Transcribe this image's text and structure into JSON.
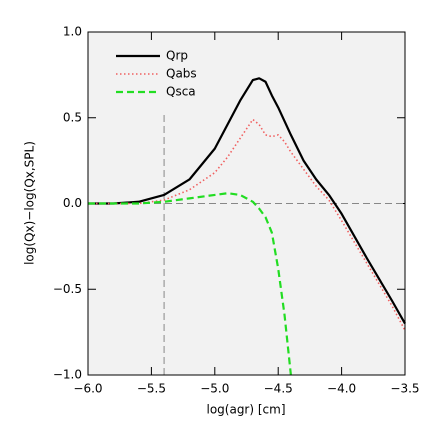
{
  "chart_data": {
    "type": "line",
    "xlabel": "log(agr) [cm]",
    "ylabel": "log(Qx)−log(Qx,SPL)",
    "x": [
      -6.0,
      -5.8,
      -5.6,
      -5.4,
      -5.2,
      -5.0,
      -4.9,
      -4.8,
      -4.7,
      -4.65,
      -4.6,
      -4.55,
      -4.5,
      -4.45,
      -4.4,
      -4.3,
      -4.2,
      -4.1,
      -4.0,
      -3.8,
      -3.6,
      -3.5
    ],
    "series": [
      {
        "name": "Qrp",
        "color": "#000000",
        "dash": "none",
        "width": 2.2,
        "values": [
          0,
          0,
          0.01,
          0.05,
          0.14,
          0.32,
          0.46,
          0.6,
          0.72,
          0.73,
          0.71,
          0.63,
          0.56,
          0.48,
          0.4,
          0.25,
          0.14,
          0.05,
          -0.06,
          -0.32,
          -0.57,
          -0.7
        ]
      },
      {
        "name": "Qabs",
        "color": "#f06060",
        "dash": "1.5 2.5",
        "width": 1.6,
        "values": [
          0,
          0,
          0,
          0.02,
          0.08,
          0.18,
          0.27,
          0.38,
          0.49,
          0.46,
          0.4,
          0.39,
          0.4,
          0.36,
          0.3,
          0.2,
          0.1,
          0.02,
          -0.1,
          -0.35,
          -0.6,
          -0.74
        ]
      },
      {
        "name": "Qsca",
        "color": "#22dd22",
        "dash": "7 4",
        "width": 2.2,
        "values": [
          0,
          0,
          0,
          0.01,
          0.03,
          0.05,
          0.06,
          0.05,
          0.01,
          -0.03,
          -0.08,
          -0.17,
          -0.38,
          -0.65,
          -1.0,
          null,
          null,
          null,
          null,
          null,
          null,
          null
        ]
      }
    ],
    "hlines": [
      0
    ],
    "vlines": [
      -5.4
    ],
    "xlim": [
      -6.0,
      -3.5
    ],
    "xticks": [
      {
        "value": -6.0,
        "label": "−6.0"
      },
      {
        "value": -5.5,
        "label": "−5.5"
      },
      {
        "value": -5.0,
        "label": "−5.0"
      },
      {
        "value": -4.5,
        "label": "−4.5"
      },
      {
        "value": -4.0,
        "label": "−4.0"
      },
      {
        "value": -3.5,
        "label": "−3.5"
      }
    ],
    "ylim": [
      -1.0,
      1.0
    ],
    "yticks": [
      {
        "value": -1.0,
        "label": "−1.0"
      },
      {
        "value": -0.5,
        "label": "−0.5"
      },
      {
        "value": 0,
        "label": "0.0"
      },
      {
        "value": 0.5,
        "label": "0.5"
      },
      {
        "value": 1.0,
        "label": "1.0"
      }
    ],
    "legend": "upper left"
  }
}
